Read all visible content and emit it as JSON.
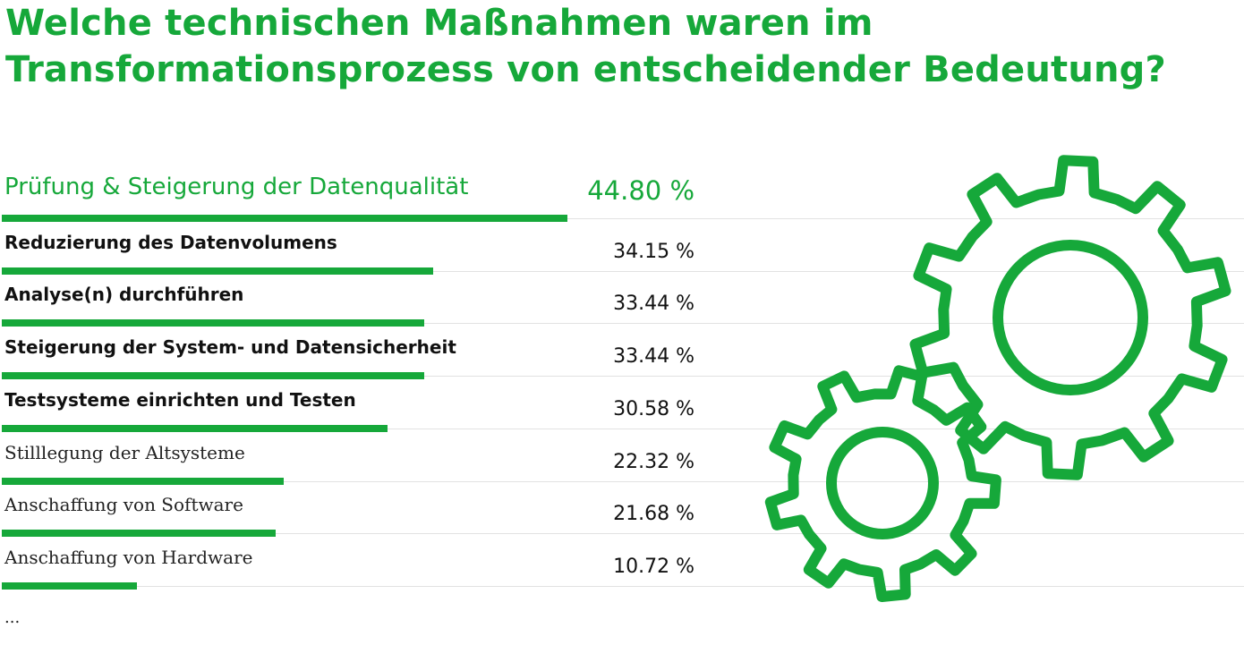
{
  "title_line1": "Welche technischen Maßnahmen waren im",
  "title_line2": "Transformationsprozess von entscheidender Bedeutung?",
  "colors": {
    "accent": "#16a83a",
    "track": "#e2e2e2"
  },
  "icons": [
    "gear-icon-large",
    "gear-icon-small"
  ],
  "more_label": "...",
  "chart_data": {
    "type": "bar",
    "orientation": "horizontal",
    "title": "Welche technischen Maßnahmen waren im Transformationsprozess von entscheidender Bedeutung?",
    "unit": "%",
    "categories": [
      "Prüfung & Steigerung der Datenqualität",
      "Reduzierung des Datenvolumens",
      "Analyse(n) durchführen",
      "Steigerung der System- und Datensicherheit",
      "Testsysteme einrichten und Testen",
      "Stilllegung der Altsysteme",
      "Anschaffung von Software",
      "Anschaffung von Hardware"
    ],
    "values": [
      44.8,
      34.15,
      33.44,
      33.44,
      30.58,
      22.32,
      21.68,
      10.72
    ],
    "value_labels": [
      "44.80 %",
      "34.15 %",
      "33.44 %",
      "33.44 %",
      "30.58 %",
      "22.32 %",
      "21.68 %",
      "10.72 %"
    ],
    "xlim": [
      0,
      100
    ]
  }
}
